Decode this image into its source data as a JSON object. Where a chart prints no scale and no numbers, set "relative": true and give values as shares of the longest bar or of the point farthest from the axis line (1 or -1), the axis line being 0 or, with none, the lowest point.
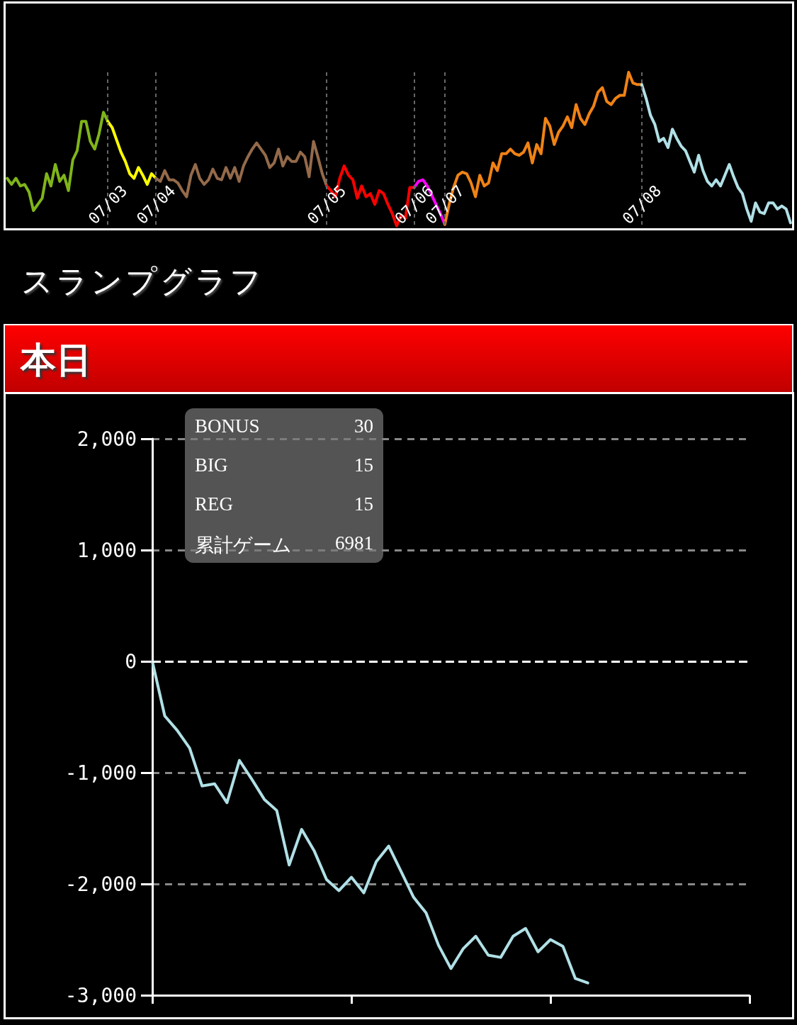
{
  "chart_data": [
    {
      "type": "line",
      "relative": true,
      "tick_labels": "x",
      "grid": "x",
      "marker": "none",
      "line_style": "solid",
      "categories": [
        null,
        null,
        null,
        null,
        null,
        null,
        null,
        null,
        null,
        null,
        null,
        null,
        null,
        null,
        null,
        null,
        null,
        null,
        null,
        null,
        null,
        null,
        null,
        "07/03",
        null,
        null,
        null,
        null,
        null,
        null,
        null,
        null,
        null,
        null,
        "07/04",
        null,
        null,
        null,
        null,
        null,
        null,
        null,
        null,
        null,
        null,
        null,
        null,
        null,
        null,
        null,
        null,
        null,
        null,
        null,
        null,
        null,
        null,
        null,
        null,
        null,
        null,
        null,
        null,
        null,
        null,
        null,
        null,
        null,
        null,
        null,
        null,
        null,
        null,
        "07/05",
        null,
        null,
        null,
        null,
        null,
        null,
        null,
        null,
        null,
        null,
        null,
        null,
        null,
        null,
        null,
        null,
        null,
        null,
        null,
        "07/06",
        null,
        null,
        null,
        null,
        null,
        null,
        "07/07",
        null,
        null,
        null,
        null,
        null,
        null,
        null,
        null,
        null,
        null,
        null,
        null,
        null,
        null,
        null,
        null,
        null,
        null,
        null,
        null,
        null,
        null,
        null,
        null,
        null,
        null,
        null,
        null,
        null,
        null,
        null,
        null,
        null,
        null,
        null,
        null,
        null,
        null,
        null,
        null,
        null,
        null,
        null,
        null,
        "07/08",
        null,
        null,
        null,
        null,
        null,
        null,
        null,
        null,
        null,
        null,
        null,
        null,
        null,
        null,
        null,
        null,
        null,
        null,
        null,
        null,
        null,
        null,
        null,
        null,
        null,
        null,
        null,
        null,
        null,
        null,
        null,
        null,
        null,
        null
      ],
      "series": [
        {
          "color": "#7fb519",
          "values": [
            0.31,
            0.27,
            0.31,
            0.26,
            0.27,
            0.22,
            0.1,
            0.14,
            0.18,
            0.34,
            0.26,
            0.4,
            0.29,
            0.33,
            0.23,
            0.43,
            0.49,
            0.68,
            0.68,
            0.55,
            0.5,
            0.6,
            0.74,
            0.68,
            null,
            null,
            null,
            null,
            null,
            null,
            null,
            null,
            null,
            null,
            null,
            null,
            null,
            null,
            null,
            null,
            null,
            null,
            null,
            null,
            null,
            null,
            null,
            null,
            null,
            null,
            null,
            null,
            null,
            null,
            null,
            null,
            null,
            null,
            null,
            null,
            null,
            null,
            null,
            null,
            null,
            null,
            null,
            null,
            null,
            null,
            null,
            null,
            null,
            null,
            null,
            null,
            null,
            null,
            null,
            null,
            null,
            null,
            null,
            null,
            null,
            null,
            null,
            null,
            null,
            null,
            null,
            null,
            null,
            null,
            null,
            null,
            null,
            null,
            null,
            null,
            null,
            null,
            null,
            null,
            null,
            null,
            null,
            null,
            null,
            null,
            null,
            null,
            null,
            null,
            null,
            null,
            null,
            null,
            null,
            null,
            null,
            null,
            null,
            null,
            null,
            null,
            null,
            null,
            null,
            null,
            null,
            null,
            null,
            null,
            null,
            null,
            null,
            null,
            null,
            null,
            null,
            null,
            null,
            null,
            null,
            null,
            null,
            null,
            null,
            null,
            null,
            null,
            null,
            null,
            null,
            null,
            null,
            null,
            null,
            null,
            null,
            null,
            null,
            null,
            null,
            null,
            null,
            null,
            null,
            null,
            null,
            null,
            null,
            null,
            null,
            null,
            null,
            null,
            null,
            null
          ]
        },
        {
          "color": "#ffff00",
          "values": [
            null,
            null,
            null,
            null,
            null,
            null,
            null,
            null,
            null,
            null,
            null,
            null,
            null,
            null,
            null,
            null,
            null,
            null,
            null,
            null,
            null,
            null,
            null,
            0.68,
            0.64,
            0.56,
            0.48,
            0.42,
            0.34,
            0.31,
            0.38,
            0.33,
            0.27,
            0.34,
            0.31,
            null,
            null,
            null,
            null,
            null,
            null,
            null,
            null,
            null,
            null,
            null,
            null,
            null,
            null,
            null,
            null,
            null,
            null,
            null,
            null,
            null,
            null,
            null,
            null,
            null,
            null,
            null,
            null,
            null,
            null,
            null,
            null,
            null,
            null,
            null,
            null,
            null,
            null,
            null,
            null,
            null,
            null,
            null,
            null,
            null,
            null,
            null,
            null,
            null,
            null,
            null,
            null,
            null,
            null,
            null,
            null,
            null,
            null,
            null,
            null,
            null,
            null,
            null,
            null,
            null,
            null,
            null,
            null,
            null,
            null,
            null,
            null,
            null,
            null,
            null,
            null,
            null,
            null,
            null,
            null,
            null,
            null,
            null,
            null,
            null,
            null,
            null,
            null,
            null,
            null,
            null,
            null,
            null,
            null,
            null,
            null,
            null,
            null,
            null,
            null,
            null,
            null,
            null,
            null,
            null,
            null,
            null,
            null,
            null,
            null,
            null,
            null,
            null,
            null,
            null,
            null,
            null,
            null,
            null,
            null,
            null,
            null,
            null,
            null,
            null,
            null,
            null,
            null,
            null,
            null,
            null,
            null,
            null,
            null,
            null,
            null,
            null,
            null,
            null,
            null,
            null,
            null,
            null,
            null,
            null
          ]
        },
        {
          "color": "#946a4a",
          "values": [
            null,
            null,
            null,
            null,
            null,
            null,
            null,
            null,
            null,
            null,
            null,
            null,
            null,
            null,
            null,
            null,
            null,
            null,
            null,
            null,
            null,
            null,
            null,
            null,
            null,
            null,
            null,
            null,
            null,
            null,
            null,
            null,
            null,
            null,
            0.31,
            0.29,
            0.36,
            0.3,
            0.3,
            0.28,
            0.23,
            0.19,
            0.33,
            0.4,
            0.31,
            0.27,
            0.3,
            0.37,
            0.31,
            0.3,
            0.38,
            0.31,
            0.38,
            0.29,
            0.39,
            0.45,
            0.5,
            0.54,
            0.5,
            0.46,
            0.38,
            0.41,
            0.5,
            0.39,
            0.45,
            0.42,
            0.42,
            0.48,
            0.45,
            0.32,
            0.55,
            0.45,
            0.34,
            0.26,
            null,
            null,
            null,
            null,
            null,
            null,
            null,
            null,
            null,
            null,
            null,
            null,
            null,
            null,
            null,
            null,
            null,
            null,
            null,
            null,
            null,
            null,
            null,
            null,
            null,
            null,
            null,
            null,
            null,
            null,
            null,
            null,
            null,
            null,
            null,
            null,
            null,
            null,
            null,
            null,
            null,
            null,
            null,
            null,
            null,
            null,
            null,
            null,
            null,
            null,
            null,
            null,
            null,
            null,
            null,
            null,
            null,
            null,
            null,
            null,
            null,
            null,
            null,
            null,
            null,
            null,
            null,
            null,
            null,
            null,
            null,
            null,
            null,
            null,
            null,
            null,
            null,
            null,
            null,
            null,
            null,
            null,
            null,
            null,
            null,
            null,
            null,
            null,
            null,
            null,
            null,
            null,
            null,
            null,
            null,
            null,
            null,
            null,
            null,
            null,
            null,
            null,
            null,
            null,
            null,
            null
          ]
        },
        {
          "color": "#ff0000",
          "values": [
            null,
            null,
            null,
            null,
            null,
            null,
            null,
            null,
            null,
            null,
            null,
            null,
            null,
            null,
            null,
            null,
            null,
            null,
            null,
            null,
            null,
            null,
            null,
            null,
            null,
            null,
            null,
            null,
            null,
            null,
            null,
            null,
            null,
            null,
            null,
            null,
            null,
            null,
            null,
            null,
            null,
            null,
            null,
            null,
            null,
            null,
            null,
            null,
            null,
            null,
            null,
            null,
            null,
            null,
            null,
            null,
            null,
            null,
            null,
            null,
            null,
            null,
            null,
            null,
            null,
            null,
            null,
            null,
            null,
            null,
            null,
            null,
            null,
            0.26,
            0.23,
            0.19,
            0.31,
            0.39,
            0.33,
            0.3,
            0.18,
            0.26,
            0.19,
            0.21,
            0.14,
            0.23,
            0.21,
            0.14,
            0.08,
            0,
            0.07,
            0.05,
            0.25,
            0.25,
            null,
            null,
            null,
            null,
            null,
            null,
            null,
            null,
            null,
            null,
            null,
            null,
            null,
            null,
            null,
            null,
            null,
            null,
            null,
            null,
            null,
            null,
            null,
            null,
            null,
            null,
            null,
            null,
            null,
            null,
            null,
            null,
            null,
            null,
            null,
            null,
            null,
            null,
            null,
            null,
            null,
            null,
            null,
            null,
            null,
            null,
            null,
            null,
            null,
            null,
            null,
            null,
            null,
            null,
            null,
            null,
            null,
            null,
            null,
            null,
            null,
            null,
            null,
            null,
            null,
            null,
            null,
            null,
            null,
            null,
            null,
            null,
            null,
            null,
            null,
            null,
            null,
            null,
            null,
            null,
            null,
            null,
            null,
            null,
            null,
            null
          ]
        },
        {
          "color": "#ff00ff",
          "values": [
            null,
            null,
            null,
            null,
            null,
            null,
            null,
            null,
            null,
            null,
            null,
            null,
            null,
            null,
            null,
            null,
            null,
            null,
            null,
            null,
            null,
            null,
            null,
            null,
            null,
            null,
            null,
            null,
            null,
            null,
            null,
            null,
            null,
            null,
            null,
            null,
            null,
            null,
            null,
            null,
            null,
            null,
            null,
            null,
            null,
            null,
            null,
            null,
            null,
            null,
            null,
            null,
            null,
            null,
            null,
            null,
            null,
            null,
            null,
            null,
            null,
            null,
            null,
            null,
            null,
            null,
            null,
            null,
            null,
            null,
            null,
            null,
            null,
            null,
            null,
            null,
            null,
            null,
            null,
            null,
            null,
            null,
            null,
            null,
            null,
            null,
            null,
            null,
            null,
            null,
            null,
            null,
            null,
            0.25,
            0.29,
            0.3,
            0.26,
            0.2,
            0.14,
            0.08,
            0.01,
            null,
            null,
            null,
            null,
            null,
            null,
            null,
            null,
            null,
            null,
            null,
            null,
            null,
            null,
            null,
            null,
            null,
            null,
            null,
            null,
            null,
            null,
            null,
            null,
            null,
            null,
            null,
            null,
            null,
            null,
            null,
            null,
            null,
            null,
            null,
            null,
            null,
            null,
            null,
            null,
            null,
            null,
            null,
            null,
            null,
            null,
            null,
            null,
            null,
            null,
            null,
            null,
            null,
            null,
            null,
            null,
            null,
            null,
            null,
            null,
            null,
            null,
            null,
            null,
            null,
            null,
            null,
            null,
            null,
            null,
            null,
            null,
            null,
            null,
            null,
            null,
            null,
            null,
            null
          ]
        },
        {
          "color": "#f08214",
          "values": [
            null,
            null,
            null,
            null,
            null,
            null,
            null,
            null,
            null,
            null,
            null,
            null,
            null,
            null,
            null,
            null,
            null,
            null,
            null,
            null,
            null,
            null,
            null,
            null,
            null,
            null,
            null,
            null,
            null,
            null,
            null,
            null,
            null,
            null,
            null,
            null,
            null,
            null,
            null,
            null,
            null,
            null,
            null,
            null,
            null,
            null,
            null,
            null,
            null,
            null,
            null,
            null,
            null,
            null,
            null,
            null,
            null,
            null,
            null,
            null,
            null,
            null,
            null,
            null,
            null,
            null,
            null,
            null,
            null,
            null,
            null,
            null,
            null,
            null,
            null,
            null,
            null,
            null,
            null,
            null,
            null,
            null,
            null,
            null,
            null,
            null,
            null,
            null,
            null,
            null,
            null,
            null,
            null,
            null,
            null,
            null,
            null,
            null,
            null,
            null,
            0.01,
            0.14,
            0.25,
            0.33,
            0.35,
            0.34,
            0.28,
            0.19,
            0.33,
            0.26,
            0.28,
            0.41,
            0.36,
            0.47,
            0.47,
            0.5,
            0.47,
            0.46,
            0.48,
            0.54,
            0.41,
            0.53,
            0.47,
            0.7,
            0.65,
            0.53,
            0.61,
            0.65,
            0.71,
            0.64,
            0.79,
            0.7,
            0.66,
            0.73,
            0.78,
            0.87,
            0.9,
            0.81,
            0.79,
            0.83,
            0.85,
            0.85,
            1.0,
            0.93,
            0.92,
            0.92,
            null,
            null,
            null,
            null,
            null,
            null,
            null,
            null,
            null,
            null,
            null,
            null,
            null,
            null,
            null,
            null,
            null,
            null,
            null,
            null,
            null,
            null,
            null,
            null,
            null,
            null,
            null,
            null,
            null,
            null,
            null,
            null,
            null,
            null
          ]
        },
        {
          "color": "#b0e0e6",
          "values": [
            null,
            null,
            null,
            null,
            null,
            null,
            null,
            null,
            null,
            null,
            null,
            null,
            null,
            null,
            null,
            null,
            null,
            null,
            null,
            null,
            null,
            null,
            null,
            null,
            null,
            null,
            null,
            null,
            null,
            null,
            null,
            null,
            null,
            null,
            null,
            null,
            null,
            null,
            null,
            null,
            null,
            null,
            null,
            null,
            null,
            null,
            null,
            null,
            null,
            null,
            null,
            null,
            null,
            null,
            null,
            null,
            null,
            null,
            null,
            null,
            null,
            null,
            null,
            null,
            null,
            null,
            null,
            null,
            null,
            null,
            null,
            null,
            null,
            null,
            null,
            null,
            null,
            null,
            null,
            null,
            null,
            null,
            null,
            null,
            null,
            null,
            null,
            null,
            null,
            null,
            null,
            null,
            null,
            null,
            null,
            null,
            null,
            null,
            null,
            null,
            null,
            null,
            null,
            null,
            null,
            null,
            null,
            null,
            null,
            null,
            null,
            null,
            null,
            null,
            null,
            null,
            null,
            null,
            null,
            null,
            null,
            null,
            null,
            null,
            null,
            null,
            null,
            null,
            null,
            null,
            null,
            null,
            null,
            null,
            null,
            null,
            null,
            null,
            null,
            null,
            null,
            null,
            null,
            null,
            null,
            0.92,
            0.83,
            0.72,
            0.66,
            0.55,
            0.57,
            0.51,
            0.63,
            0.57,
            0.52,
            0.49,
            0.42,
            0.35,
            0.46,
            0.36,
            0.29,
            0.26,
            0.3,
            0.26,
            0.33,
            0.4,
            0.32,
            0.25,
            0.21,
            0.11,
            0.03,
            0.15,
            0.09,
            0.08,
            0.15,
            0.15,
            0.11,
            0.13,
            0.11,
            0.02
          ]
        }
      ]
    },
    {
      "type": "line",
      "title": "スランプグラフ",
      "subtitle": "本日",
      "categories": [
        null,
        null,
        null,
        null,
        null,
        null,
        null,
        null,
        null,
        null,
        null,
        null,
        null,
        null,
        null,
        null,
        null,
        null,
        null,
        null,
        null,
        null,
        null,
        null,
        null,
        null,
        null,
        null,
        null,
        null,
        null,
        null,
        null,
        null,
        null,
        null,
        null,
        null,
        null,
        null,
        null,
        null,
        null,
        null,
        null,
        null,
        null,
        null,
        null
      ],
      "ylim": [
        -3000,
        2000
      ],
      "yticks": [
        {
          "value": -3000,
          "label": "-3,000"
        },
        {
          "value": -2000,
          "label": "-2,000"
        },
        {
          "value": -1000,
          "label": "-1,000"
        },
        0,
        {
          "value": 1000,
          "label": "1,000"
        },
        {
          "value": 2000,
          "label": "2,000"
        }
      ],
      "tick_labels": "y",
      "grid": "y",
      "marker": "none",
      "line_style": "solid",
      "series": [
        {
          "color": "#b0e0e6",
          "values": [
            0,
            -490,
            -620,
            -780,
            -1120,
            -1100,
            -1270,
            -890,
            -1060,
            -1240,
            -1340,
            -1830,
            -1510,
            -1700,
            -1960,
            -2060,
            -1940,
            -2080,
            -1800,
            -1660,
            -1890,
            -2120,
            -2260,
            -2550,
            -2760,
            -2580,
            -2470,
            -2640,
            -2660,
            -2470,
            -2400,
            -2610,
            -2500,
            -2560,
            -2850,
            -2890,
            null,
            null,
            null,
            null,
            null,
            null,
            null,
            null,
            null,
            null,
            null,
            null,
            null
          ]
        }
      ],
      "ref_lines": [
        {
          "axis": "y",
          "value": 0,
          "color": "#ffffff",
          "line_style": "dashed"
        }
      ],
      "annotations": [
        "BONUS",
        "30",
        "BIG",
        "15",
        "REG",
        "15",
        "累計ゲーム",
        "6981"
      ]
    }
  ]
}
